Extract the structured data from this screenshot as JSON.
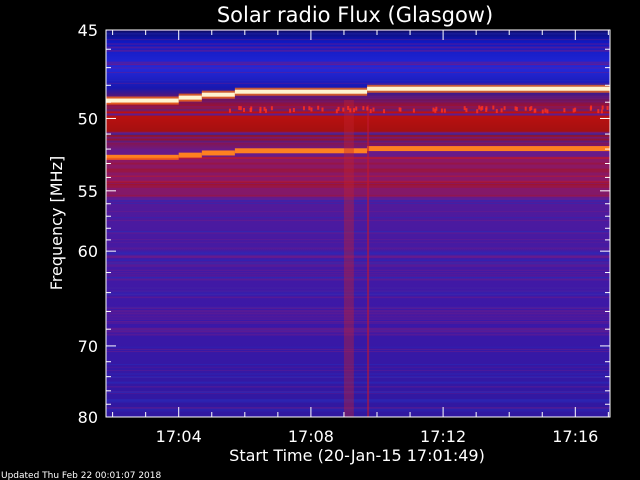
{
  "chart_data": {
    "type": "heatmap",
    "title": "Solar radio Flux (Glasgow)",
    "xlabel": "Start Time (20-Jan-15 17:01:49)",
    "ylabel": "Frequency [MHz]",
    "xlim_minutes_after_1700": [
      1.8,
      17.05
    ],
    "ylim_mhz": [
      45,
      80
    ],
    "x_ticks": [
      {
        "minutes": 4,
        "label": "17:04"
      },
      {
        "minutes": 8,
        "label": "17:08"
      },
      {
        "minutes": 12,
        "label": "17:12"
      },
      {
        "minutes": 16,
        "label": "17:16"
      }
    ],
    "y_ticks": [
      {
        "mhz": 45,
        "label": "45"
      },
      {
        "mhz": 50,
        "label": "50"
      },
      {
        "mhz": 55,
        "label": "55"
      },
      {
        "mhz": 60,
        "label": "60"
      },
      {
        "mhz": 70,
        "label": "70"
      },
      {
        "mhz": 80,
        "label": "80"
      }
    ],
    "y_scale": "reciprocal",
    "colormap": [
      "#000000",
      "#10107a",
      "#2a14a8",
      "#5a1890",
      "#b01010",
      "#ff6020",
      "#fff0c0"
    ],
    "features": [
      {
        "kind": "narrowband line",
        "freq_mhz_start": 48.9,
        "freq_mhz_end": 48.2,
        "intensity": "saturated"
      },
      {
        "kind": "narrowband line",
        "freq_mhz_start": 52.6,
        "freq_mhz_end": 52.0,
        "intensity": "high"
      },
      {
        "kind": "enhanced band",
        "freq_mhz_from": 52.6,
        "freq_mhz_to": 55.5,
        "intensity": "moderate"
      },
      {
        "kind": "burst column",
        "minute_from": 9.0,
        "minute_to": 9.3,
        "intensity": "moderate"
      },
      {
        "kind": "burst line",
        "minute": 9.7,
        "intensity": "moderate"
      }
    ]
  },
  "footer": "Updated Thu Feb 22 00:01:07 2018"
}
